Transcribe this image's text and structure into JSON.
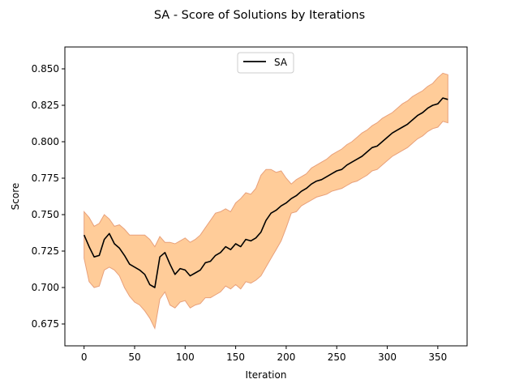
{
  "chart_data": {
    "type": "line",
    "title": "SA - Score of Solutions by Iterations",
    "xlabel": "Iteration",
    "ylabel": "Score",
    "xlim": [
      -19,
      379
    ],
    "ylim": [
      0.66,
      0.865
    ],
    "xticks": [
      0,
      50,
      100,
      150,
      200,
      250,
      300,
      350
    ],
    "yticks": [
      0.675,
      0.7,
      0.725,
      0.75,
      0.775,
      0.8,
      0.825,
      0.85
    ],
    "ytick_labels": [
      "0.675",
      "0.700",
      "0.725",
      "0.750",
      "0.775",
      "0.800",
      "0.825",
      "0.850"
    ],
    "grid": false,
    "legend": {
      "position": "top-center",
      "entries": [
        "SA"
      ]
    },
    "series": [
      {
        "name": "SA",
        "color": "#000000",
        "band_fill": "#ffcc99",
        "band_edge": "#e8a07a",
        "x": [
          0,
          5,
          10,
          15,
          20,
          25,
          30,
          35,
          40,
          45,
          50,
          55,
          60,
          65,
          70,
          75,
          80,
          85,
          90,
          95,
          100,
          105,
          110,
          115,
          120,
          125,
          130,
          135,
          140,
          145,
          150,
          155,
          160,
          165,
          170,
          175,
          180,
          185,
          190,
          195,
          200,
          205,
          210,
          215,
          220,
          225,
          230,
          235,
          240,
          245,
          250,
          255,
          260,
          265,
          270,
          275,
          280,
          285,
          290,
          295,
          300,
          305,
          310,
          315,
          320,
          325,
          330,
          335,
          340,
          345,
          350,
          355,
          360
        ],
        "mean": [
          0.736,
          0.728,
          0.721,
          0.722,
          0.733,
          0.737,
          0.73,
          0.727,
          0.722,
          0.716,
          0.714,
          0.712,
          0.709,
          0.702,
          0.7,
          0.721,
          0.724,
          0.716,
          0.709,
          0.713,
          0.712,
          0.708,
          0.71,
          0.712,
          0.717,
          0.718,
          0.722,
          0.724,
          0.728,
          0.726,
          0.73,
          0.728,
          0.733,
          0.732,
          0.734,
          0.738,
          0.746,
          0.751,
          0.753,
          0.756,
          0.758,
          0.761,
          0.763,
          0.766,
          0.768,
          0.771,
          0.773,
          0.774,
          0.776,
          0.778,
          0.78,
          0.781,
          0.784,
          0.786,
          0.788,
          0.79,
          0.793,
          0.796,
          0.797,
          0.8,
          0.803,
          0.806,
          0.808,
          0.81,
          0.812,
          0.815,
          0.818,
          0.82,
          0.823,
          0.825,
          0.826,
          0.83,
          0.829
        ],
        "upper": [
          0.752,
          0.748,
          0.742,
          0.744,
          0.75,
          0.747,
          0.742,
          0.743,
          0.74,
          0.736,
          0.736,
          0.736,
          0.736,
          0.733,
          0.728,
          0.735,
          0.731,
          0.731,
          0.73,
          0.732,
          0.734,
          0.731,
          0.733,
          0.736,
          0.741,
          0.746,
          0.751,
          0.752,
          0.754,
          0.752,
          0.758,
          0.761,
          0.765,
          0.764,
          0.768,
          0.777,
          0.781,
          0.781,
          0.779,
          0.78,
          0.775,
          0.771,
          0.774,
          0.776,
          0.778,
          0.782,
          0.784,
          0.786,
          0.788,
          0.791,
          0.793,
          0.795,
          0.798,
          0.8,
          0.803,
          0.806,
          0.808,
          0.811,
          0.813,
          0.816,
          0.818,
          0.82,
          0.823,
          0.826,
          0.828,
          0.831,
          0.833,
          0.835,
          0.838,
          0.84,
          0.844,
          0.847,
          0.846
        ],
        "lower": [
          0.72,
          0.704,
          0.7,
          0.701,
          0.712,
          0.714,
          0.712,
          0.708,
          0.7,
          0.694,
          0.69,
          0.688,
          0.684,
          0.679,
          0.672,
          0.692,
          0.697,
          0.688,
          0.686,
          0.69,
          0.691,
          0.686,
          0.688,
          0.689,
          0.693,
          0.693,
          0.695,
          0.697,
          0.701,
          0.699,
          0.702,
          0.699,
          0.704,
          0.703,
          0.705,
          0.708,
          0.714,
          0.72,
          0.726,
          0.732,
          0.741,
          0.751,
          0.752,
          0.756,
          0.758,
          0.76,
          0.762,
          0.763,
          0.764,
          0.766,
          0.767,
          0.768,
          0.77,
          0.772,
          0.773,
          0.775,
          0.777,
          0.78,
          0.781,
          0.784,
          0.787,
          0.79,
          0.792,
          0.794,
          0.796,
          0.799,
          0.802,
          0.804,
          0.807,
          0.809,
          0.81,
          0.814,
          0.813
        ]
      }
    ]
  }
}
